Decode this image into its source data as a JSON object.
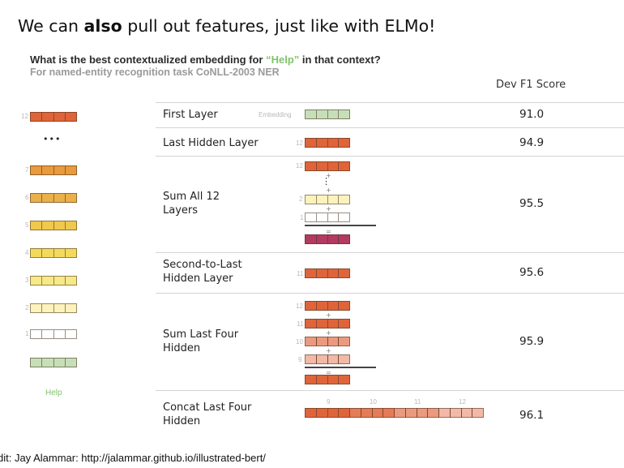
{
  "title": {
    "pre": "We can ",
    "bold": "also",
    "post": " pull out features, just like with ELMo!"
  },
  "question": {
    "pre": "What is the best contextualized embedding for ",
    "word": "“Help”",
    "post": " in that context?"
  },
  "subtitle": "For named-entity recognition task CoNLL-2003 NER",
  "score_header": "Dev F1 Score",
  "word_label": "Help",
  "credit": "dit: Jay Alammar: http://jalammar.github.io/illustrated-bert/",
  "colors": {
    "layer12": "#e0643a",
    "layer7": "#e89a3c",
    "layer6": "#ebb04a",
    "layer5": "#f0c84c",
    "layer4": "#f4da5c",
    "layer3": "#f7e888",
    "layer2": "#fbf2bc",
    "layer1": "#ffffff",
    "embedding": "#c6dfb8",
    "sum_all": "#b33a62",
    "help_green": "#7fc36a"
  },
  "stack": {
    "layers": [
      "12",
      "7",
      "6",
      "5",
      "4",
      "3",
      "2",
      "1"
    ],
    "ellipsis": "•••"
  },
  "rows": [
    {
      "label": "First Layer",
      "small_label": "Embedding",
      "score": "91.0"
    },
    {
      "label": "Last Hidden Layer",
      "small_label": "12",
      "score": "94.9"
    },
    {
      "label": "Sum All 12 Layers",
      "small_labels": [
        "12",
        "2",
        "1"
      ],
      "score": "95.5"
    },
    {
      "label": "Second-to-Last Hidden Layer",
      "small_label": "11",
      "score": "95.6"
    },
    {
      "label": "Sum Last Four Hidden",
      "small_labels": [
        "12",
        "11",
        "10",
        "9"
      ],
      "score": "95.9"
    },
    {
      "label": "Concat Last Four Hidden",
      "small_labels": [
        "9",
        "10",
        "11",
        "12"
      ],
      "score": "96.1"
    }
  ]
}
